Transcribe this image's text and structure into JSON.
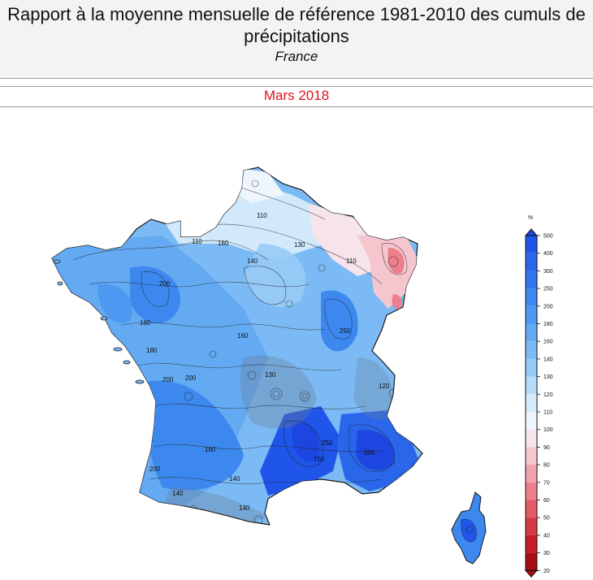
{
  "header": {
    "title": "Rapport à la moyenne mensuelle de référence 1981-2010 des cumuls de précipitations",
    "subtitle": "France",
    "period": "Mars 2018"
  },
  "legend": {
    "unit": "%",
    "classes": [
      {
        "value": "500",
        "color": "#1d45e0"
      },
      {
        "value": "400",
        "color": "#1f55e8"
      },
      {
        "value": "300",
        "color": "#2a66ea"
      },
      {
        "value": "250",
        "color": "#3276ec"
      },
      {
        "value": "200",
        "color": "#3d88ee"
      },
      {
        "value": "180",
        "color": "#4d98f0"
      },
      {
        "value": "160",
        "color": "#62a9f2"
      },
      {
        "value": "140",
        "color": "#7bbaf4"
      },
      {
        "value": "130",
        "color": "#98cbf6"
      },
      {
        "value": "120",
        "color": "#b7dcf9"
      },
      {
        "value": "110",
        "color": "#d6ebfb"
      },
      {
        "value": "100",
        "color": "#eef5fc"
      },
      {
        "value": "90",
        "color": "#f6e4ea"
      },
      {
        "value": "80",
        "color": "#f6c6cf"
      },
      {
        "value": "70",
        "color": "#f2a3ae"
      },
      {
        "value": "60",
        "color": "#ec7f8c"
      },
      {
        "value": "50",
        "color": "#e25a67"
      },
      {
        "value": "40",
        "color": "#d53944"
      },
      {
        "value": "30",
        "color": "#c41d25"
      },
      {
        "value": "20",
        "color": "#a80d14"
      }
    ]
  },
  "map": {
    "regions": [
      "France",
      "Corse"
    ],
    "contour_labels": [
      {
        "text": "110"
      },
      {
        "text": "160"
      },
      {
        "text": "140"
      },
      {
        "text": "130"
      },
      {
        "text": "200"
      },
      {
        "text": "180"
      },
      {
        "text": "180"
      },
      {
        "text": "160"
      },
      {
        "text": "200"
      },
      {
        "text": "250"
      },
      {
        "text": "110"
      },
      {
        "text": "130"
      },
      {
        "text": "150"
      },
      {
        "text": "200"
      },
      {
        "text": "160"
      },
      {
        "text": "140"
      },
      {
        "text": "200"
      },
      {
        "text": "120"
      },
      {
        "text": "250"
      },
      {
        "text": "300"
      },
      {
        "text": "110"
      },
      {
        "text": "140"
      },
      {
        "text": "140"
      }
    ]
  }
}
